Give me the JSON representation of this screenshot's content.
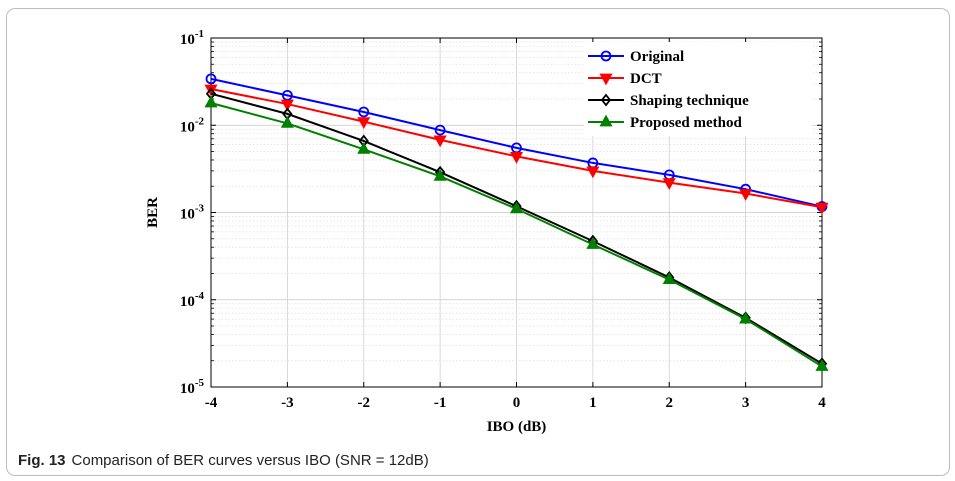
{
  "caption": {
    "label": "Fig. 13",
    "text": "Comparison of BER curves versus IBO (SNR = 12dB)"
  },
  "chart_data": {
    "type": "line",
    "title": "",
    "xlabel": "IBO (dB)",
    "ylabel": "BER",
    "xlim": [
      -4,
      4
    ],
    "ylim": [
      1e-05,
      0.1
    ],
    "yscale": "log",
    "grid": true,
    "legend_position": "top-right",
    "x_ticks": [
      "-4",
      "-3",
      "-2",
      "-1",
      "0",
      "1",
      "2",
      "3",
      "4"
    ],
    "y_ticks": [
      {
        "base": "10",
        "exp": "-5"
      },
      {
        "base": "10",
        "exp": "-4"
      },
      {
        "base": "10",
        "exp": "-3"
      },
      {
        "base": "10",
        "exp": "-2"
      },
      {
        "base": "10",
        "exp": "-1"
      }
    ],
    "x": [
      -4,
      -3,
      -2,
      -1,
      0,
      1,
      2,
      3,
      4
    ],
    "series": [
      {
        "name": "Original",
        "color": "#0000ff",
        "marker": "circle",
        "values": [
          0.034,
          0.022,
          0.0142,
          0.0088,
          0.0055,
          0.0037,
          0.0027,
          0.00185,
          0.00117
        ]
      },
      {
        "name": "DCT",
        "color": "#ff0000",
        "marker": "triangle-down",
        "values": [
          0.026,
          0.0175,
          0.011,
          0.0068,
          0.0044,
          0.003,
          0.0022,
          0.00165,
          0.00115
        ]
      },
      {
        "name": "Shaping technique",
        "color": "#000000",
        "marker": "diamond",
        "values": [
          0.023,
          0.0135,
          0.0066,
          0.0029,
          0.00118,
          0.00047,
          0.00018,
          6.2e-05,
          1.85e-05
        ]
      },
      {
        "name": "Proposed method",
        "color": "#008000",
        "marker": "triangle-up",
        "values": [
          0.018,
          0.0105,
          0.0053,
          0.0026,
          0.0011,
          0.00043,
          0.00017,
          6e-05,
          1.72e-05
        ]
      }
    ]
  }
}
